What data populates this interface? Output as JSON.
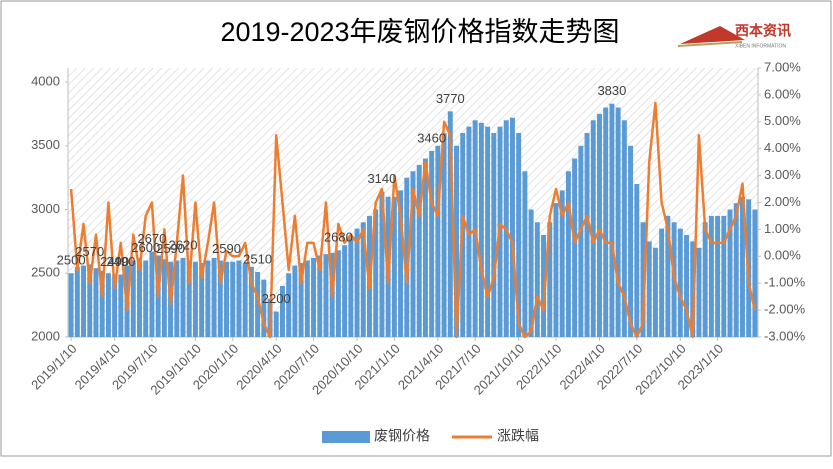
{
  "chart_data": {
    "type": "bar_line",
    "title": "2019-2023年废钢价格指数走势图",
    "logo": "西本资讯",
    "logo_subtitle": "XIBEN INFORMATION",
    "categories": [
      "2019/1/10",
      null,
      null,
      null,
      null,
      null,
      null,
      "2019/4/10",
      null,
      null,
      null,
      null,
      null,
      "2019/7/10",
      null,
      null,
      null,
      null,
      null,
      null,
      "2019/10/10",
      null,
      null,
      null,
      null,
      null,
      "2020/1/10",
      null,
      null,
      null,
      null,
      null,
      null,
      "2020/4/10",
      null,
      null,
      null,
      null,
      null,
      "2020/7/10",
      null,
      null,
      null,
      null,
      null,
      null,
      "2020/10/10",
      null,
      null,
      null,
      null,
      null,
      "2021/1/10",
      null,
      null,
      null,
      null,
      null,
      null,
      "2021/4/10",
      null,
      null,
      null,
      null,
      null,
      "2021/7/10",
      null,
      null,
      null,
      null,
      null,
      null,
      "2021/10/10",
      null,
      null,
      null,
      null,
      null,
      "2022/1/10",
      null,
      null,
      null,
      null,
      null,
      null,
      "2022/4/10",
      null,
      null,
      null,
      null,
      null,
      "2022/7/10",
      null,
      null,
      null,
      null,
      null,
      null,
      "2022/10/10",
      null,
      null,
      null,
      null,
      null,
      "2023/1/10",
      null,
      null,
      null,
      null,
      null,
      null
    ],
    "series": [
      {
        "name": "废钢价格",
        "color": "#5b9bd5",
        "values": [
          2500,
          2550,
          2560,
          2570,
          2540,
          2520,
          2500,
          2490,
          2490,
          2560,
          2600,
          2620,
          2600,
          2670,
          2640,
          2610,
          2590,
          2600,
          2620,
          2600,
          2590,
          2580,
          2600,
          2620,
          2600,
          2590,
          2590,
          2600,
          2580,
          2550,
          2510,
          2450,
          2300,
          2200,
          2400,
          2500,
          2560,
          2580,
          2600,
          2620,
          2640,
          2650,
          2660,
          2680,
          2720,
          2780,
          2850,
          2900,
          2950,
          3000,
          3140,
          3100,
          3100,
          3150,
          3250,
          3300,
          3350,
          3400,
          3460,
          3500,
          3600,
          3770,
          3500,
          3600,
          3650,
          3700,
          3680,
          3650,
          3600,
          3650,
          3700,
          3720,
          3600,
          3300,
          3000,
          2900,
          2800,
          2900,
          3050,
          3150,
          3300,
          3400,
          3500,
          3600,
          3700,
          3750,
          3800,
          3830,
          3800,
          3700,
          3500,
          3200,
          2900,
          2750,
          2700,
          2850,
          2950,
          2900,
          2850,
          2800,
          2750,
          2700,
          2900,
          2950,
          2950,
          2950,
          3000,
          3050,
          3100,
          3080,
          3000
        ],
        "value_labels": [
          "2500",
          null,
          null,
          "2570",
          null,
          null,
          null,
          "2490",
          "2490",
          null,
          null,
          null,
          "2600",
          "2670",
          null,
          null,
          "2590",
          null,
          "2620",
          null,
          null,
          null,
          null,
          null,
          null,
          "2590",
          null,
          null,
          null,
          null,
          "2510",
          null,
          null,
          "2200",
          null,
          null,
          null,
          null,
          null,
          null,
          null,
          null,
          null,
          "2680",
          null,
          null,
          null,
          null,
          null,
          null,
          "3140",
          null,
          null,
          null,
          null,
          null,
          null,
          null,
          "3460",
          null,
          null,
          "3770",
          null,
          null,
          null,
          null,
          null,
          null,
          null,
          null,
          null,
          null,
          null,
          null,
          null,
          null,
          null,
          null,
          null,
          null,
          null,
          null,
          null,
          null,
          null,
          null,
          null,
          "3830",
          null,
          null,
          null,
          null,
          null,
          null,
          null,
          null,
          null,
          null,
          null,
          null,
          null,
          null,
          null,
          null,
          null,
          null,
          null,
          null,
          null,
          null,
          null
        ]
      },
      {
        "name": "涨跌幅",
        "color": "#ed7d31",
        "axis": "y2",
        "values": [
          2.5,
          -0.5,
          1.2,
          -1,
          0.8,
          -1.5,
          2.0,
          -1.2,
          0.5,
          -2,
          0.8,
          -0.5,
          1.5,
          2.0,
          -1.5,
          1.0,
          -1.8,
          0.5,
          3.0,
          -1.0,
          2.0,
          -0.8,
          0.5,
          2.0,
          -1.0,
          0.2,
          0,
          0,
          0.5,
          -1,
          -1.5,
          -2.5,
          -3.0,
          4.5,
          2.0,
          -0.5,
          1.5,
          -1.0,
          0.5,
          0.5,
          -0.5,
          2.0,
          -1.5,
          1.2,
          0.5,
          0.8,
          0.5,
          1.0,
          -1.2,
          2.0,
          2.5,
          -1.0,
          3.0,
          1.5,
          -1.0,
          2.5,
          1.5,
          3.5,
          2.0,
          1.5,
          5.0,
          4.5,
          -3.0,
          1.5,
          0.8,
          1.0,
          -0.5,
          -1.5,
          -0.8,
          1.2,
          1.0,
          0.5,
          -2.5,
          -3.0,
          -2.8,
          -1.5,
          -2.0,
          1.5,
          2.5,
          1.5,
          2.0,
          0.5,
          1.0,
          1.5,
          0.5,
          1.0,
          0.5,
          0.5,
          -1.0,
          -1.5,
          -2.5,
          -3.0,
          -2.5,
          3.5,
          5.7,
          2.0,
          1.0,
          -0.8,
          -1.5,
          -2.0,
          -3.0,
          4.5,
          1.0,
          0.5,
          0.5,
          0.5,
          1.0,
          1.5,
          2.7,
          -1.0,
          -2.0
        ]
      }
    ],
    "ylim": [
      2000,
      4110
    ],
    "yticks": [
      2000,
      2500,
      3000,
      3500,
      4000
    ],
    "y2lim": [
      -3,
      7
    ],
    "y2ticks": [
      {
        "value": -3,
        "label": "-3.00%"
      },
      {
        "value": -2,
        "label": "-2.00%"
      },
      {
        "value": -1,
        "label": "-1.00%"
      },
      {
        "value": 0,
        "label": "0.00%"
      },
      {
        "value": 1,
        "label": "1.00%"
      },
      {
        "value": 2,
        "label": "2.00%"
      },
      {
        "value": 3,
        "label": "3.00%"
      },
      {
        "value": 4,
        "label": "4.00%"
      },
      {
        "value": 5,
        "label": "5.00%"
      },
      {
        "value": 6,
        "label": "6.00%"
      },
      {
        "value": 7,
        "label": "7.00%"
      }
    ],
    "legend": "bottom"
  }
}
